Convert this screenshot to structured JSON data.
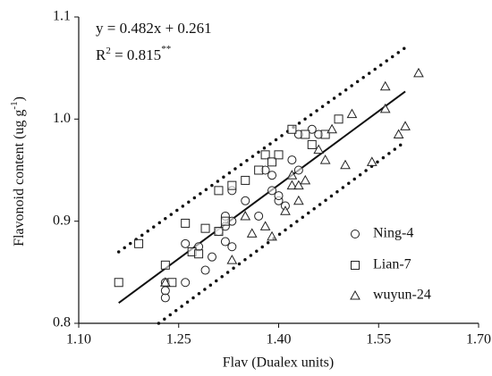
{
  "chart_data": {
    "type": "scatter",
    "annotations": {
      "equation": "y = 0.482x + 0.261",
      "r2": [
        "R",
        "2",
        " = 0.815",
        "**"
      ]
    },
    "x_label": "Flav (Dualex units)",
    "y_label": [
      "Flavonoid content (ug g",
      "-1",
      ")"
    ],
    "xlim": [
      1.1,
      1.7
    ],
    "xticks": [
      {
        "value": 1.1,
        "label": "1.10"
      },
      1.25,
      {
        "value": 1.4,
        "label": "1.40"
      },
      1.55,
      {
        "value": 1.7,
        "label": "1.70"
      }
    ],
    "ylim": [
      0.8,
      1.1
    ],
    "yticks": [
      0.8,
      0.9,
      {
        "value": 1,
        "label": "1.0"
      },
      1.1
    ],
    "legend": "lower right",
    "series": [
      {
        "name": "Ning-4",
        "marker": "circle",
        "color": "#222222",
        "x": [
          1.23,
          1.23,
          1.23,
          1.26,
          1.26,
          1.28,
          1.29,
          1.3,
          1.31,
          1.32,
          1.32,
          1.32,
          1.33,
          1.33,
          1.33,
          1.35,
          1.37,
          1.38,
          1.39,
          1.39,
          1.4,
          1.4,
          1.41,
          1.42,
          1.43,
          1.43,
          1.45,
          1.46
        ],
        "values": [
          0.825,
          0.832,
          0.84,
          0.84,
          0.878,
          0.875,
          0.852,
          0.865,
          0.89,
          0.905,
          0.895,
          0.88,
          0.875,
          0.9,
          0.93,
          0.92,
          0.905,
          0.95,
          0.93,
          0.945,
          0.92,
          0.925,
          0.915,
          0.96,
          0.985,
          0.95,
          0.99,
          0.985
        ]
      },
      {
        "name": "Lian-7",
        "marker": "square",
        "color": "#222222",
        "x": [
          1.16,
          1.19,
          1.23,
          1.24,
          1.26,
          1.27,
          1.28,
          1.29,
          1.31,
          1.31,
          1.32,
          1.33,
          1.35,
          1.37,
          1.38,
          1.39,
          1.4,
          1.42,
          1.44,
          1.45,
          1.47,
          1.49
        ],
        "values": [
          0.84,
          0.878,
          0.857,
          0.84,
          0.898,
          0.87,
          0.868,
          0.893,
          0.93,
          0.89,
          0.9,
          0.935,
          0.94,
          0.95,
          0.965,
          0.958,
          0.965,
          0.99,
          0.985,
          0.975,
          0.985,
          1.0
        ]
      },
      {
        "name": "wuyun-24",
        "marker": "triangle",
        "color": "#222222",
        "x": [
          1.23,
          1.33,
          1.35,
          1.36,
          1.38,
          1.39,
          1.41,
          1.42,
          1.42,
          1.43,
          1.43,
          1.44,
          1.46,
          1.47,
          1.48,
          1.5,
          1.51,
          1.54,
          1.56,
          1.56,
          1.58,
          1.59,
          1.61
        ],
        "values": [
          0.84,
          0.862,
          0.905,
          0.888,
          0.895,
          0.885,
          0.91,
          0.935,
          0.945,
          0.92,
          0.935,
          0.94,
          0.97,
          0.96,
          0.99,
          0.955,
          1.005,
          0.958,
          1.032,
          1.01,
          0.985,
          0.993,
          1.045
        ]
      }
    ],
    "fit": {
      "x": [
        1.16,
        1.59
      ],
      "values": [
        0.82,
        1.027
      ]
    },
    "upper_band": {
      "x": [
        1.16,
        1.59
      ],
      "values": [
        0.87,
        1.07
      ]
    },
    "lower_band": {
      "x": [
        1.22,
        1.59
      ],
      "values": [
        0.8,
        0.978
      ]
    }
  }
}
